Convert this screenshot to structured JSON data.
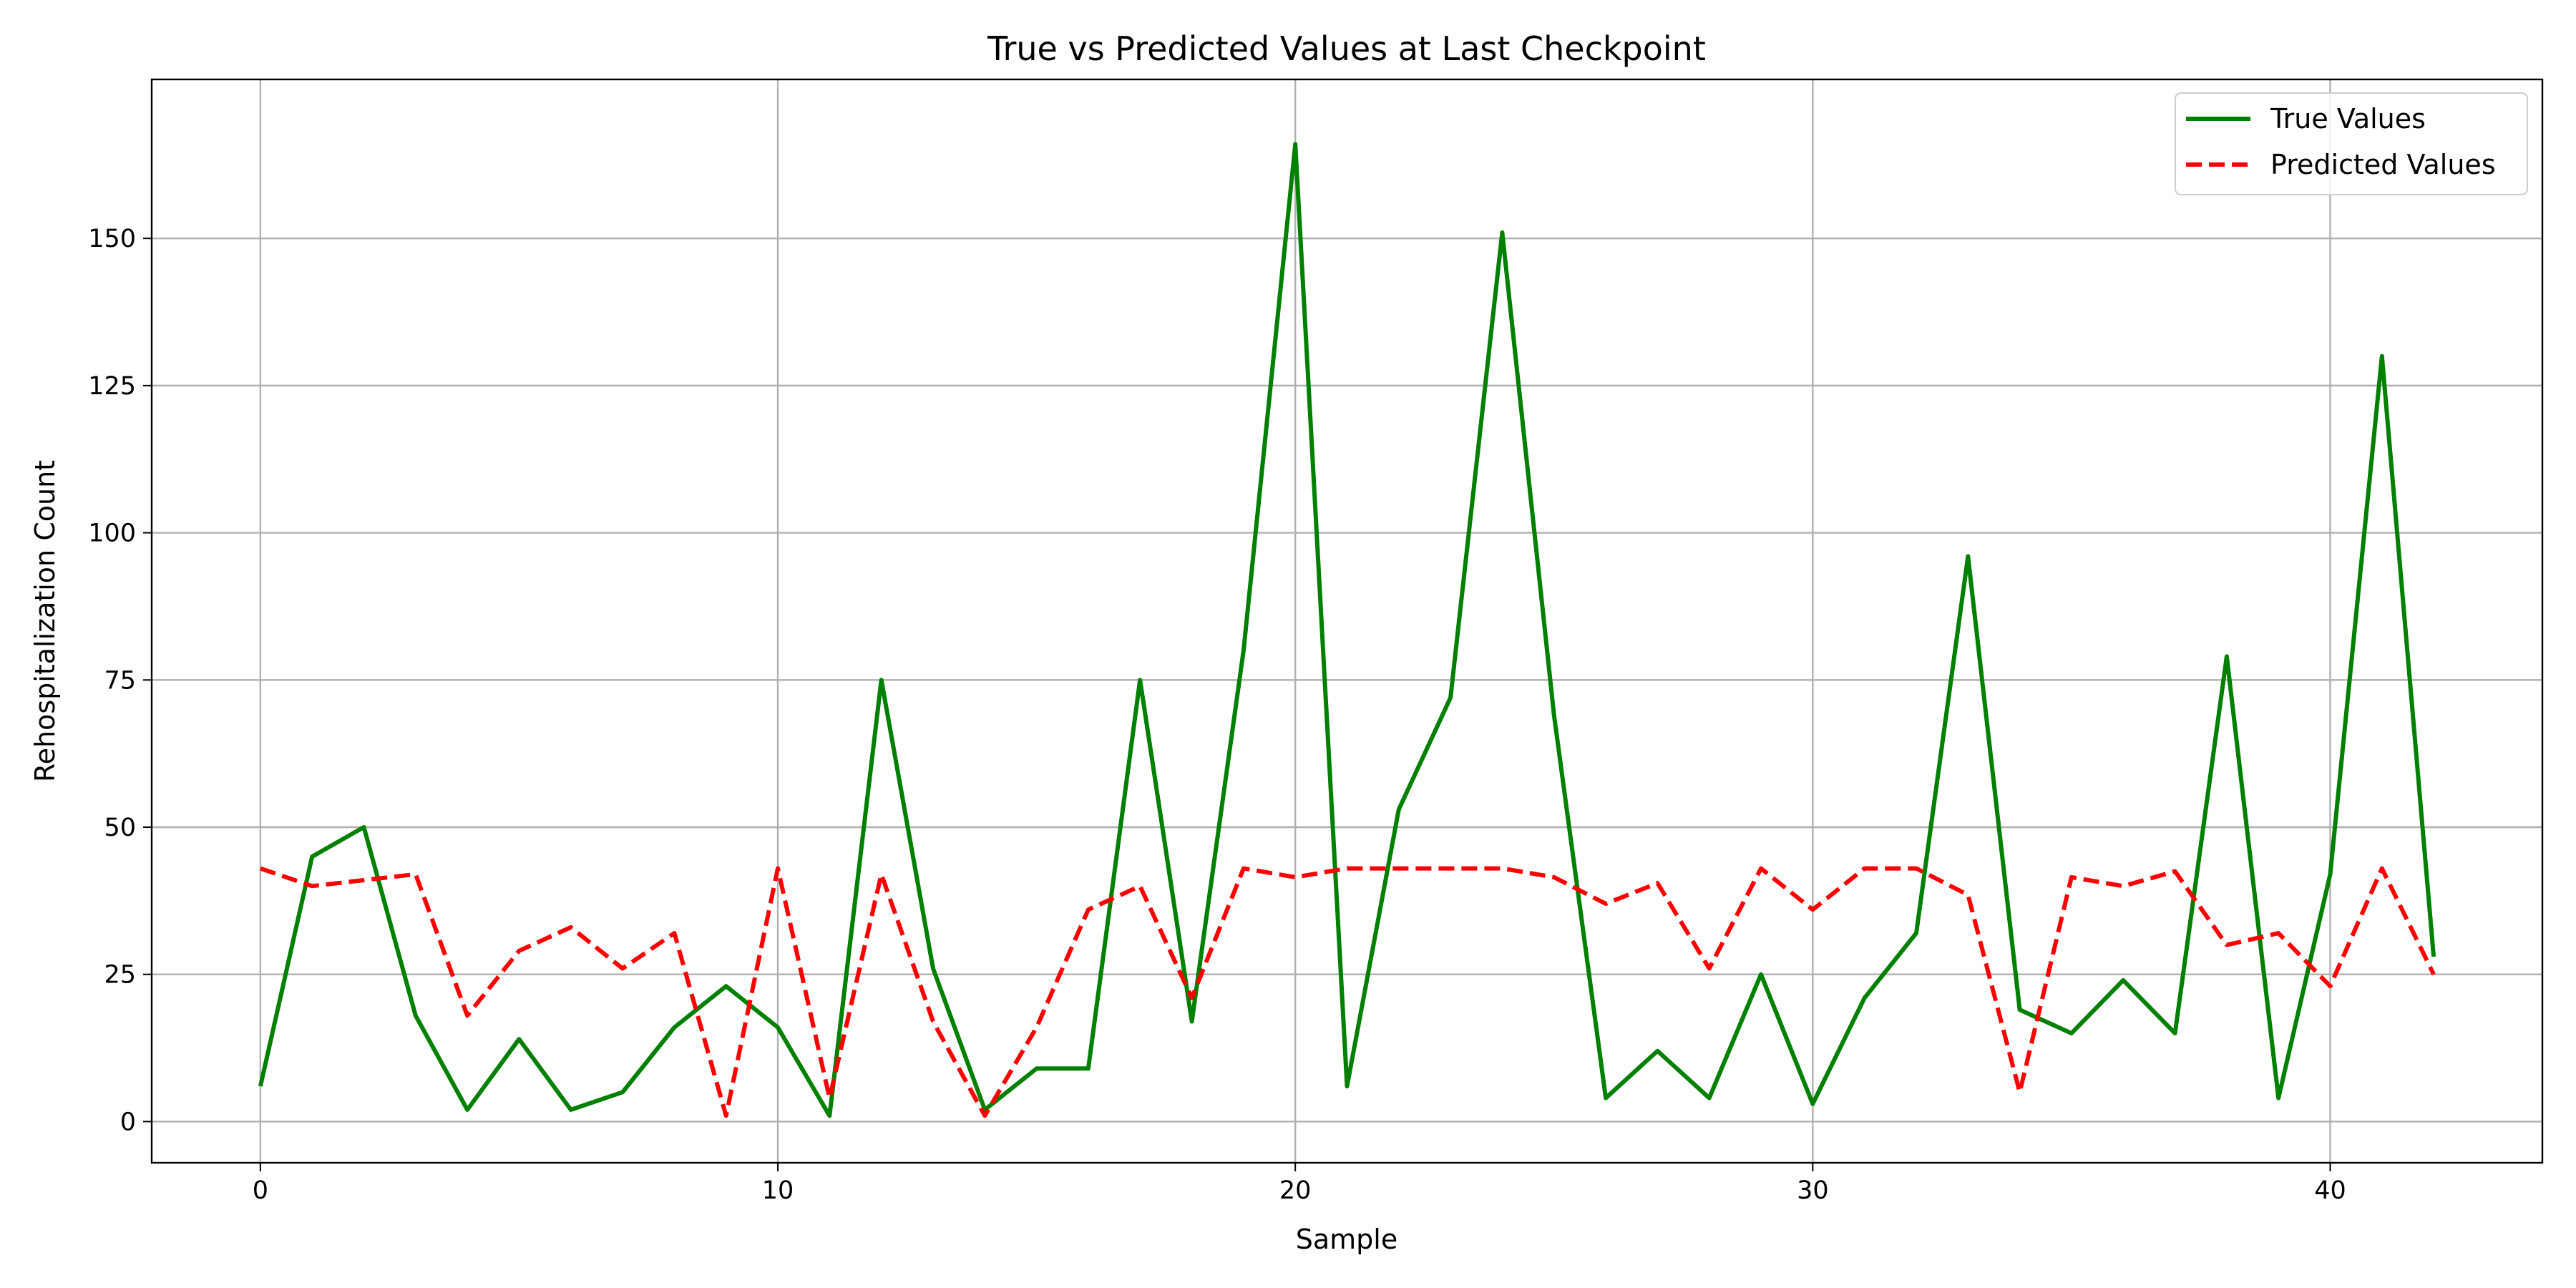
{
  "chart_data": {
    "type": "line",
    "title": "True vs Predicted Values at Last Checkpoint",
    "xlabel": "Sample",
    "ylabel": "Rehospitalization Count",
    "xlim": [
      -2.1,
      44.1
    ],
    "ylim": [
      -7,
      177
    ],
    "xticks": [
      0,
      10,
      20,
      30,
      40
    ],
    "yticks": [
      0,
      25,
      50,
      75,
      100,
      125,
      150
    ],
    "grid": true,
    "legend_position": "top-right",
    "x": [
      0,
      1,
      2,
      3,
      4,
      5,
      6,
      7,
      8,
      9,
      10,
      11,
      12,
      13,
      14,
      15,
      16,
      17,
      18,
      19,
      20,
      21,
      22,
      23,
      24,
      25,
      26,
      27,
      28,
      29,
      30,
      31,
      32,
      33,
      34,
      35,
      36,
      37,
      38,
      39,
      40,
      41,
      42
    ],
    "series": [
      {
        "name": "True Values",
        "color": "#008000",
        "dash": "solid",
        "values": [
          6,
          45,
          50,
          18,
          2,
          14,
          2,
          5,
          16,
          23,
          16,
          1,
          75,
          26,
          2,
          9,
          9,
          75,
          17,
          80,
          166,
          6,
          53,
          72,
          151,
          69,
          4,
          12,
          4,
          25,
          3,
          21,
          32,
          96,
          19,
          15,
          24,
          15,
          79,
          4,
          42,
          130,
          28
        ]
      },
      {
        "name": "Predicted Values",
        "color": "#ff0000",
        "dash": "dashed",
        "values": [
          43,
          40,
          41,
          42,
          18,
          29,
          33,
          26,
          32,
          1,
          43,
          4,
          42,
          17,
          1,
          16,
          36,
          40,
          21,
          43,
          41.5,
          43,
          43,
          43,
          43,
          41.5,
          37,
          40.5,
          26,
          43,
          36,
          43,
          43,
          38.5,
          5,
          41.5,
          40,
          42.5,
          30,
          32,
          23,
          43,
          25
        ]
      }
    ]
  }
}
